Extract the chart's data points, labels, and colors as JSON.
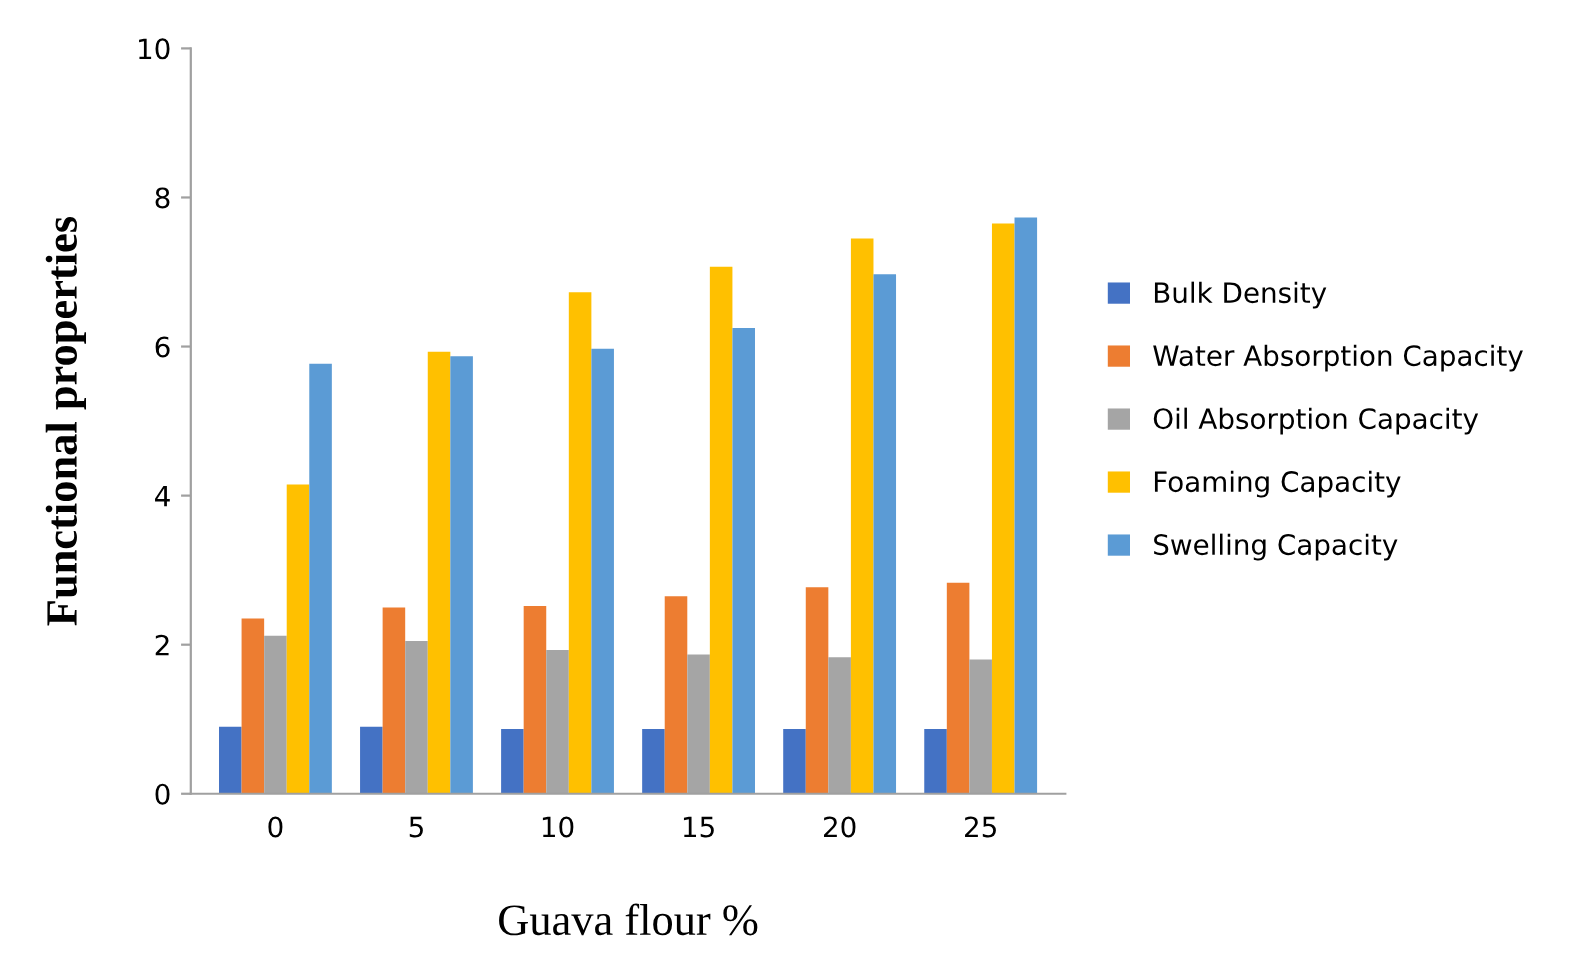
{
  "chart_data": {
    "type": "bar",
    "xlabel": "Guava flour %",
    "ylabel": "Functional properties",
    "categories": [
      "0",
      "5",
      "10",
      "15",
      "20",
      "25"
    ],
    "series": [
      {
        "name": "Bulk Density",
        "color": "#4472c4",
        "values": [
          0.9,
          0.9,
          0.87,
          0.87,
          0.87,
          0.87
        ]
      },
      {
        "name": "Water Absorption Capacity",
        "color": "#ed7d31",
        "values": [
          2.35,
          2.5,
          2.52,
          2.65,
          2.77,
          2.83
        ]
      },
      {
        "name": "Oil Absorption Capacity",
        "color": "#a5a5a5",
        "values": [
          2.12,
          2.05,
          1.93,
          1.87,
          1.83,
          1.8
        ]
      },
      {
        "name": "Foaming Capacity",
        "color": "#ffc000",
        "values": [
          4.15,
          5.93,
          6.73,
          7.07,
          7.45,
          7.65
        ]
      },
      {
        "name": "Swelling Capacity",
        "color": "#5b9bd5",
        "values": [
          5.77,
          5.87,
          5.97,
          6.25,
          6.97,
          7.73
        ]
      }
    ],
    "ylim": [
      0,
      10
    ],
    "yticks": [
      0,
      2,
      4,
      6,
      8,
      10
    ],
    "grid": false,
    "legend": "right"
  }
}
